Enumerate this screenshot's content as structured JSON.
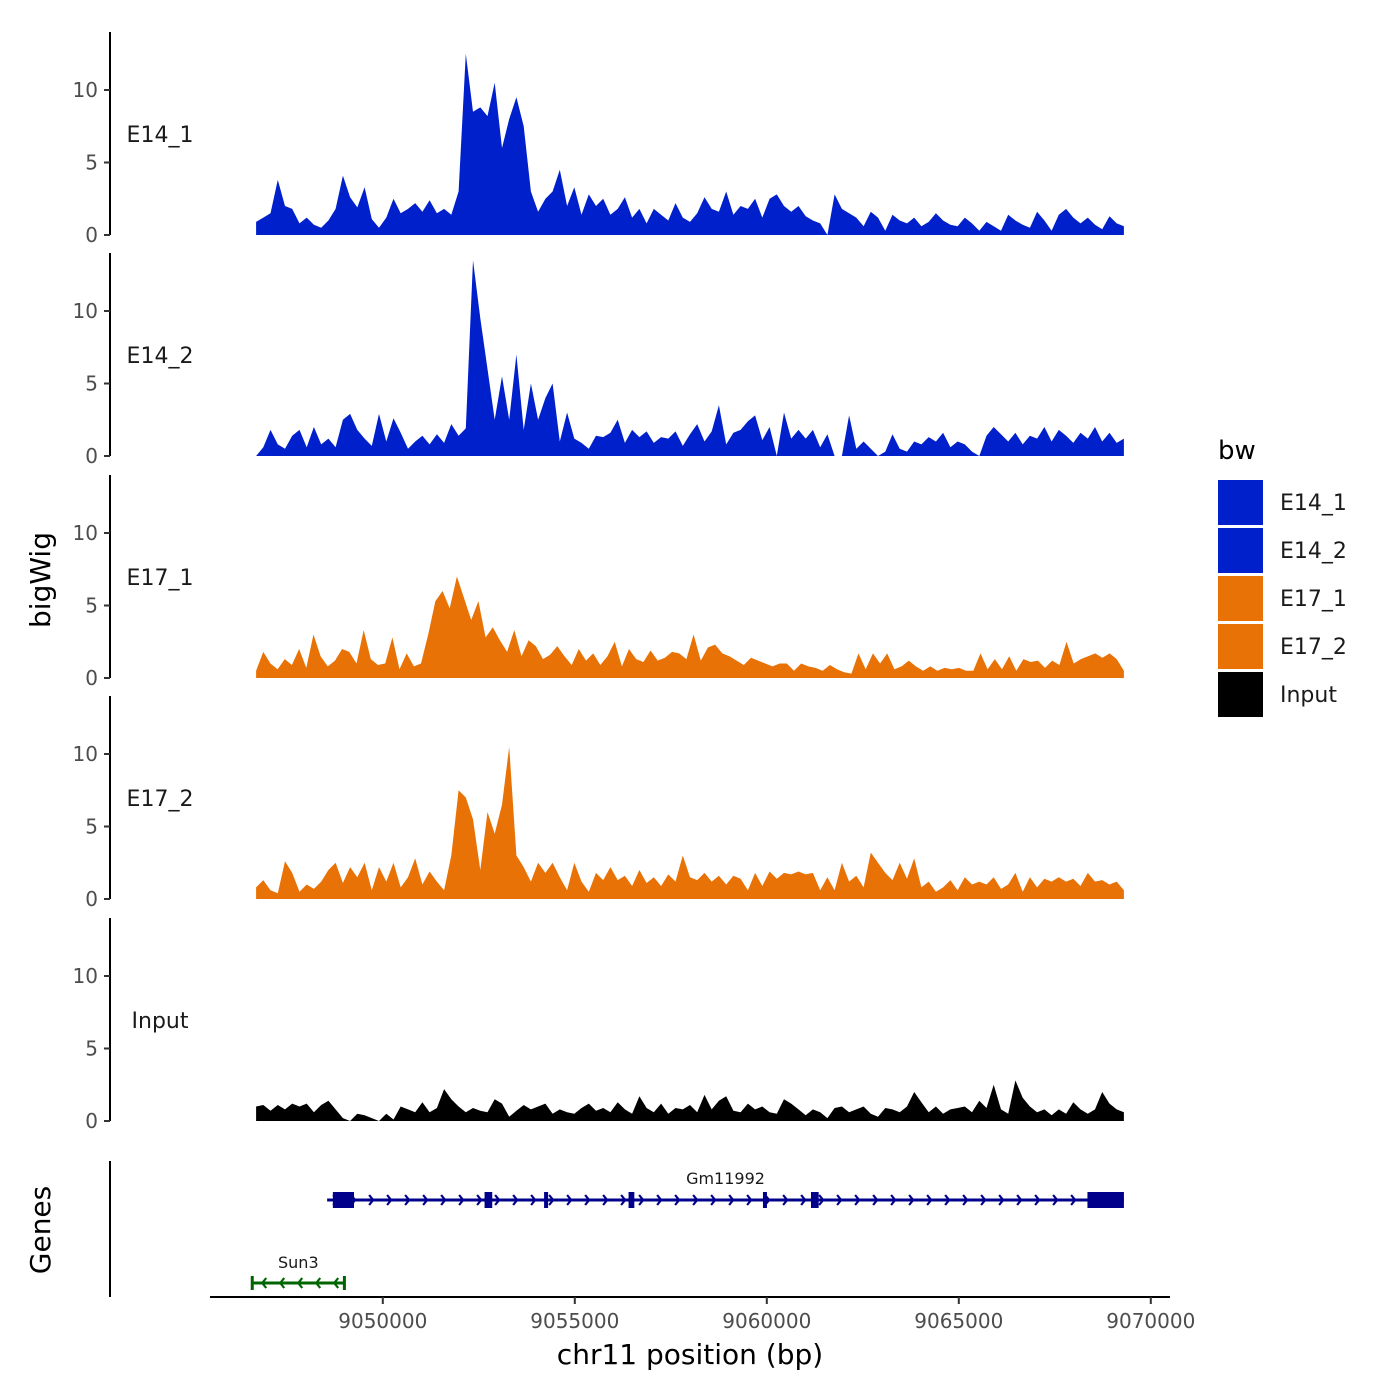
{
  "chart_data": {
    "type": "area",
    "chromosome": "chr11",
    "xlabel": "chr11 position (bp)",
    "ylabel": "bigWig",
    "genes_label": "Genes",
    "xlim": [
      9045500,
      9070500
    ],
    "x_ticks": [
      9050000,
      9055000,
      9060000,
      9065000,
      9070000
    ],
    "x_tick_labels": [
      "9050000",
      "9055000",
      "9060000",
      "9065000",
      "9070000"
    ],
    "ylim": [
      0,
      14
    ],
    "y_ticks": [
      0,
      5,
      10
    ],
    "y_tick_labels": [
      "0",
      "5",
      "10"
    ],
    "x_start": 9046700,
    "x_end": 9069300,
    "legend": {
      "title": "bw",
      "entries": [
        {
          "name": "E14_1",
          "color": "#0020CC"
        },
        {
          "name": "E14_2",
          "color": "#0020CC"
        },
        {
          "name": "E17_1",
          "color": "#E87205"
        },
        {
          "name": "E17_2",
          "color": "#E87205"
        },
        {
          "name": "Input",
          "color": "#000000"
        }
      ]
    },
    "series": [
      {
        "name": "E14_1",
        "color": "#0020CC",
        "values": [
          0.9,
          1.2,
          1.5,
          3.8,
          2.0,
          1.8,
          0.8,
          1.2,
          0.7,
          0.5,
          1.0,
          1.8,
          4.1,
          2.6,
          1.9,
          3.3,
          1.1,
          0.5,
          1.2,
          2.5,
          1.5,
          1.8,
          2.2,
          1.6,
          2.4,
          1.5,
          1.8,
          1.4,
          3.0,
          12.5,
          8.5,
          8.8,
          8.2,
          10.5,
          6.0,
          8.0,
          9.5,
          7.5,
          3.0,
          1.6,
          2.5,
          3.0,
          4.5,
          2.0,
          3.3,
          1.4,
          2.8,
          2.0,
          2.5,
          1.4,
          1.8,
          2.6,
          1.2,
          1.8,
          0.8,
          1.8,
          1.4,
          1.0,
          2.2,
          1.2,
          0.9,
          1.5,
          2.6,
          1.8,
          1.6,
          3.0,
          1.4,
          2.0,
          1.8,
          2.5,
          1.2,
          2.5,
          2.8,
          2.0,
          1.6,
          2.0,
          1.3,
          1.0,
          0.8,
          0.0,
          2.8,
          1.8,
          1.5,
          1.2,
          0.6,
          1.6,
          1.2,
          0.3,
          1.4,
          1.0,
          0.8,
          1.2,
          0.6,
          0.9,
          1.5,
          1.0,
          0.7,
          0.6,
          1.2,
          0.8,
          0.3,
          0.9,
          0.6,
          0.3,
          1.4,
          1.0,
          0.7,
          0.5,
          1.6,
          1.0,
          0.3,
          1.4,
          1.8,
          1.2,
          0.8,
          1.2,
          0.7,
          0.4,
          1.3,
          0.8,
          0.6
        ]
      },
      {
        "name": "E14_2",
        "color": "#0020CC",
        "values": [
          0.0,
          0.6,
          1.8,
          0.8,
          0.5,
          1.4,
          1.8,
          0.6,
          2.0,
          0.8,
          1.2,
          0.6,
          2.5,
          2.9,
          1.8,
          1.2,
          0.7,
          2.9,
          1.0,
          2.6,
          1.6,
          0.5,
          1.0,
          1.4,
          0.8,
          1.5,
          0.9,
          2.2,
          1.4,
          1.9,
          13.5,
          9.5,
          6.0,
          2.5,
          5.5,
          2.5,
          7.0,
          1.8,
          5.0,
          2.5,
          4.0,
          5.0,
          1.0,
          3.0,
          1.2,
          0.9,
          0.5,
          1.4,
          1.3,
          1.6,
          2.5,
          0.9,
          1.8,
          1.3,
          1.7,
          0.9,
          1.3,
          1.2,
          1.7,
          0.7,
          1.5,
          2.2,
          1.0,
          1.7,
          3.5,
          0.8,
          1.6,
          1.8,
          2.4,
          2.8,
          1.1,
          2.0,
          0.0,
          3.0,
          1.2,
          1.8,
          1.2,
          1.8,
          0.6,
          1.5,
          0.0,
          0.0,
          2.8,
          0.5,
          1.0,
          0.5,
          0.0,
          0.3,
          1.5,
          0.5,
          0.3,
          1.0,
          0.8,
          1.3,
          1.0,
          1.6,
          0.6,
          1.0,
          0.8,
          0.3,
          0.0,
          1.4,
          2.0,
          1.5,
          1.0,
          1.6,
          0.8,
          1.4,
          1.2,
          2.0,
          1.0,
          1.8,
          1.4,
          0.9,
          1.6,
          1.2,
          2.0,
          1.0,
          1.6,
          0.9,
          1.2
        ]
      },
      {
        "name": "E17_1",
        "color": "#E87205",
        "values": [
          0.5,
          1.8,
          1.0,
          0.6,
          1.3,
          0.9,
          2.0,
          0.7,
          3.0,
          1.5,
          0.8,
          1.2,
          2.0,
          1.8,
          1.0,
          3.3,
          1.3,
          0.9,
          1.0,
          2.8,
          0.6,
          1.7,
          0.8,
          1.0,
          3.0,
          5.3,
          6.0,
          4.8,
          7.0,
          5.5,
          4.0,
          5.3,
          2.8,
          3.5,
          2.6,
          1.8,
          3.3,
          1.5,
          2.6,
          2.2,
          1.3,
          1.6,
          2.2,
          1.5,
          0.9,
          2.0,
          1.2,
          1.7,
          0.9,
          1.5,
          2.5,
          0.8,
          2.0,
          1.3,
          1.1,
          1.9,
          1.2,
          1.4,
          1.8,
          1.7,
          1.3,
          3.0,
          1.2,
          2.1,
          2.3,
          1.7,
          1.5,
          1.2,
          0.9,
          1.4,
          1.2,
          1.0,
          0.8,
          1.0,
          1.0,
          0.5,
          1.0,
          0.8,
          0.7,
          0.5,
          0.9,
          0.6,
          0.4,
          0.3,
          1.7,
          0.6,
          1.7,
          1.0,
          1.7,
          0.6,
          0.8,
          1.2,
          0.8,
          0.5,
          0.8,
          0.5,
          0.7,
          0.6,
          0.7,
          0.5,
          0.5,
          1.7,
          0.6,
          1.3,
          0.6,
          1.5,
          0.5,
          1.3,
          1.1,
          1.2,
          0.7,
          1.2,
          0.9,
          2.5,
          1.0,
          1.3,
          1.5,
          1.7,
          1.4,
          1.7,
          1.3,
          0.5
        ]
      },
      {
        "name": "E17_2",
        "color": "#E87205",
        "values": [
          0.8,
          1.3,
          0.6,
          0.4,
          2.6,
          1.8,
          0.5,
          1.0,
          0.7,
          1.2,
          2.0,
          2.5,
          1.1,
          2.2,
          1.5,
          2.5,
          0.6,
          2.2,
          1.2,
          2.5,
          0.8,
          1.5,
          2.8,
          1.0,
          1.9,
          1.2,
          0.6,
          3.0,
          7.5,
          7.0,
          5.5,
          2.0,
          6.0,
          4.5,
          6.5,
          10.5,
          3.0,
          2.2,
          1.2,
          2.5,
          1.8,
          2.5,
          1.5,
          0.6,
          2.5,
          1.2,
          0.5,
          1.8,
          1.3,
          2.2,
          1.3,
          1.6,
          0.9,
          2.0,
          1.1,
          1.5,
          0.9,
          1.7,
          1.2,
          3.0,
          1.5,
          1.3,
          1.8,
          1.2,
          1.6,
          1.0,
          1.6,
          1.4,
          0.6,
          1.8,
          0.9,
          1.9,
          1.4,
          1.8,
          1.7,
          1.9,
          1.7,
          1.8,
          0.6,
          1.5,
          0.6,
          2.5,
          1.2,
          1.6,
          0.8,
          3.2,
          2.5,
          1.8,
          1.3,
          2.5,
          1.4,
          2.8,
          0.8,
          1.2,
          0.5,
          0.8,
          1.3,
          0.6,
          1.5,
          1.0,
          1.2,
          1.0,
          1.5,
          0.7,
          1.0,
          1.8,
          0.5,
          1.5,
          0.8,
          1.4,
          1.2,
          1.5,
          1.2,
          1.4,
          0.9,
          1.8,
          1.2,
          1.3,
          1.0,
          1.2,
          0.6
        ]
      },
      {
        "name": "Input",
        "color": "#000000",
        "values": [
          1.0,
          1.1,
          0.7,
          1.1,
          0.8,
          1.2,
          1.0,
          1.2,
          0.6,
          1.1,
          1.4,
          0.8,
          0.2,
          0.0,
          0.5,
          0.4,
          0.2,
          0.0,
          0.5,
          0.1,
          1.0,
          0.8,
          0.6,
          1.3,
          0.6,
          0.9,
          2.2,
          1.5,
          1.0,
          0.6,
          0.9,
          0.7,
          0.6,
          1.5,
          1.2,
          0.3,
          0.7,
          1.1,
          0.8,
          1.0,
          1.2,
          0.5,
          0.8,
          0.6,
          0.5,
          0.9,
          1.2,
          0.7,
          0.9,
          0.6,
          1.3,
          0.8,
          0.5,
          1.7,
          0.9,
          0.6,
          1.2,
          0.5,
          0.9,
          0.8,
          1.1,
          0.6,
          1.8,
          0.8,
          1.4,
          1.7,
          0.7,
          0.6,
          1.2,
          0.8,
          1.0,
          0.6,
          0.5,
          1.5,
          1.2,
          0.8,
          0.4,
          0.8,
          0.6,
          0.2,
          0.9,
          1.0,
          0.6,
          0.8,
          1.0,
          0.5,
          0.3,
          0.9,
          0.8,
          0.6,
          1.0,
          2.0,
          1.3,
          0.6,
          1.0,
          0.5,
          0.8,
          0.9,
          1.0,
          0.6,
          1.4,
          0.9,
          2.5,
          0.8,
          0.5,
          2.8,
          1.6,
          1.0,
          0.6,
          0.8,
          0.4,
          0.8,
          0.5,
          1.3,
          0.8,
          0.5,
          0.8,
          2.0,
          1.2,
          0.8,
          0.6
        ]
      }
    ],
    "genes": [
      {
        "name": "Gm11992",
        "strand": "+",
        "color": "#00008B",
        "start": 9048550,
        "end": 9069300,
        "exons": [
          [
            9048700,
            9049250
          ],
          [
            9052650,
            9052850
          ],
          [
            9054200,
            9054300
          ],
          [
            9056400,
            9056550
          ],
          [
            9059900,
            9060000
          ],
          [
            9061150,
            9061350
          ],
          [
            9068350,
            9069300
          ]
        ]
      },
      {
        "name": "Sun3",
        "strand": "-",
        "color": "#006400",
        "start": 9046600,
        "end": 9049000,
        "exons": []
      }
    ]
  }
}
